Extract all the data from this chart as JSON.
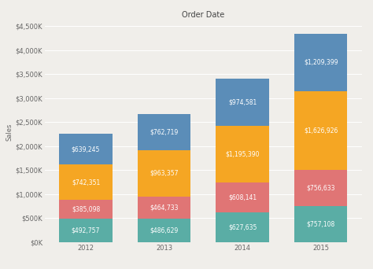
{
  "years": [
    "2012",
    "2013",
    "2014",
    "2015"
  ],
  "segments": {
    "teal": [
      492757,
      486629,
      627635,
      757108
    ],
    "pink": [
      385098,
      464733,
      608141,
      756633
    ],
    "orange": [
      742351,
      963357,
      1195390,
      1626926
    ],
    "blue": [
      639245,
      762719,
      974581,
      1209399
    ]
  },
  "labels": {
    "teal": [
      "$492,757",
      "$486,629",
      "$627,635",
      "$757,108"
    ],
    "pink": [
      "$385,098",
      "$464,733",
      "$608,141",
      "$756,633"
    ],
    "orange": [
      "$742,351",
      "$963,357",
      "$1,195,390",
      "$1,626,926"
    ],
    "blue": [
      "$639,245",
      "$762,719",
      "$974,581",
      "$1,209,399"
    ]
  },
  "colors": {
    "teal": "#5aada5",
    "pink": "#e07575",
    "orange": "#f5a623",
    "blue": "#5b8db8"
  },
  "title": "Order Date",
  "ylabel": "Sales",
  "ylim": [
    0,
    4600000
  ],
  "yticks": [
    0,
    500000,
    1000000,
    1500000,
    2000000,
    2500000,
    3000000,
    3500000,
    4000000,
    4500000
  ],
  "ytick_labels": [
    "$0K",
    "$500K",
    "$1,000K",
    "$1,500K",
    "$2,000K",
    "$2,500K",
    "$3,000K",
    "$3,500K",
    "$4,000K",
    "$4,500K"
  ],
  "background_color": "#f0eeea",
  "label_fontsize": 5.5,
  "title_fontsize": 7,
  "ylabel_fontsize": 6,
  "tick_fontsize": 6
}
